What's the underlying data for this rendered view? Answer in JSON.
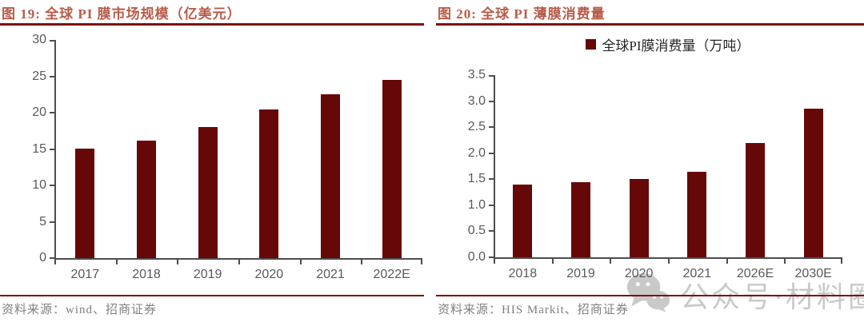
{
  "colors": {
    "title": "#B85C48",
    "rule": "#7E0E0C",
    "bar": "#660808",
    "axis": "#4D4D4D",
    "tick_label": "#595959",
    "legend_text": "#262626",
    "source_text": "#808080",
    "watermark": "#C9C9C9"
  },
  "watermark": {
    "icon": "wechat-icon",
    "text": "公众号·材料圈"
  },
  "chart_data": [
    {
      "type": "bar",
      "title": "图 19: 全球 PI 膜市场规模（亿美元）",
      "categories": [
        "2017",
        "2018",
        "2019",
        "2020",
        "2021",
        "2022E"
      ],
      "values": [
        15.1,
        16.2,
        18.0,
        20.4,
        22.5,
        24.5
      ],
      "ylim": [
        0,
        30
      ],
      "ytick_labels": [
        "0",
        "5",
        "10",
        "15",
        "20",
        "25",
        "30"
      ],
      "xlabel": "",
      "ylabel": "",
      "grid": false,
      "legend": null,
      "source": "资料来源：wind、招商证券"
    },
    {
      "type": "bar",
      "title": "图 20: 全球 PI 薄膜消费量",
      "categories": [
        "2018",
        "2019",
        "2020",
        "2021",
        "2026E",
        "2030E"
      ],
      "values": [
        1.4,
        1.45,
        1.5,
        1.65,
        2.2,
        2.85
      ],
      "ylim": [
        0,
        3.5
      ],
      "ytick_labels": [
        "0.0",
        "0.5",
        "1.0",
        "1.5",
        "2.0",
        "2.5",
        "3.0",
        "3.5"
      ],
      "xlabel": "",
      "ylabel": "",
      "grid": false,
      "legend": "全球PI膜消费量（万吨）",
      "legend_position": "top-center",
      "source": "资料来源：HIS Markit、招商证券"
    }
  ]
}
